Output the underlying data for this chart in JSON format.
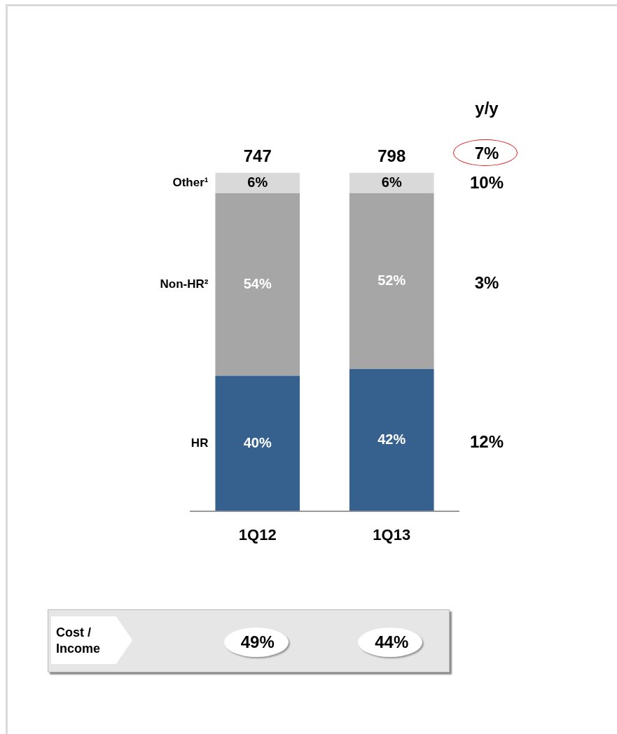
{
  "chart_data": {
    "type": "bar",
    "stacked": true,
    "legend": false,
    "categories": [
      "1Q12",
      "1Q13"
    ],
    "series": [
      {
        "name": "HR",
        "color": "#36618f",
        "values": [
          40,
          42
        ],
        "value_labels": [
          "40%",
          "42%"
        ]
      },
      {
        "name": "Non-HR²",
        "color": "#a6a6a6",
        "values": [
          54,
          52
        ],
        "value_labels": [
          "54%",
          "52%"
        ]
      },
      {
        "name": "Other¹",
        "color": "#d9d9d9",
        "values": [
          6,
          6
        ],
        "value_labels": [
          "6%",
          "6%"
        ]
      }
    ],
    "annotations": [
      "y/y",
      "7%",
      "12%",
      "3%",
      "10%",
      "Cost / Income",
      "49%",
      "44%",
      "747",
      "798"
    ]
  }
}
